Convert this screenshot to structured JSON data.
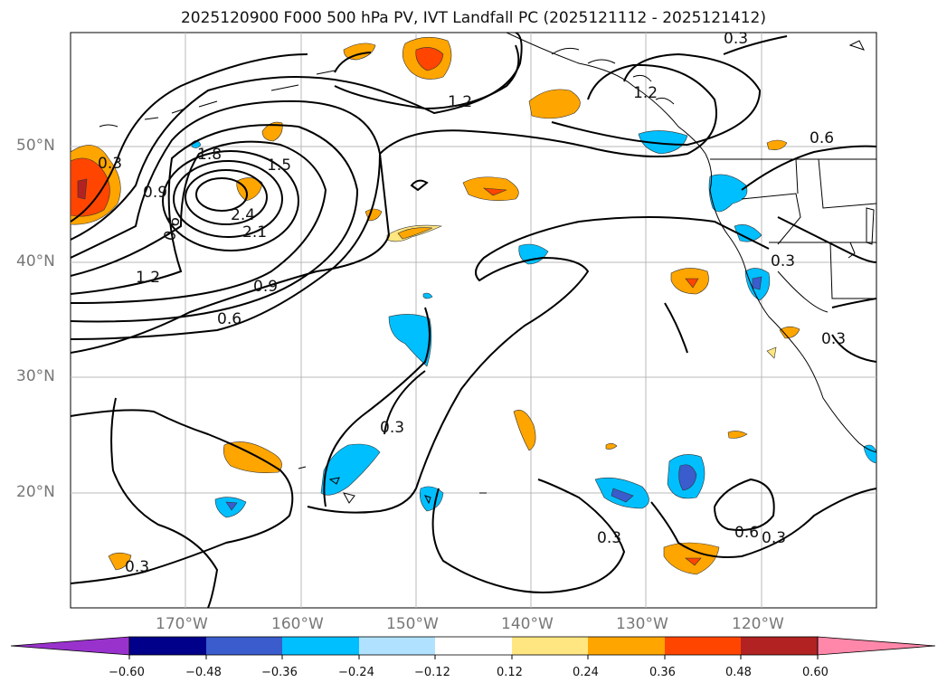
{
  "title": "2025120900 F000 500 hPa PV, IVT Landfall PC (2025121112 - 2025121412)",
  "lat_labels": [
    "50°N",
    "40°N",
    "30°N",
    "20°N"
  ],
  "lon_labels": [
    "170°W",
    "160°W",
    "150°W",
    "140°W",
    "130°W",
    "120°W"
  ],
  "contour_labels": [
    "0.3",
    "0.6",
    "0.9",
    "1.2",
    "1.5",
    "1.8",
    "2.1",
    "2.4",
    "1.2",
    "0.3",
    "0.3",
    "0.3",
    "0.6",
    "0.3",
    "0.6",
    "0.9",
    "1.2",
    "0.3",
    "0.3",
    "0.3",
    "0.6"
  ],
  "colorbar": {
    "ticks": [
      "−0.60",
      "−0.48",
      "−0.36",
      "−0.24",
      "−0.12",
      "0.12",
      "0.24",
      "0.36",
      "0.48",
      "0.60"
    ],
    "colors": [
      "#9932cc",
      "#00008b",
      "#3a5ccc",
      "#00bfff",
      "#b0e2ff",
      "#ffffff",
      "#ffe680",
      "#ffa500",
      "#ff4500",
      "#b22222",
      "#ff88aa"
    ]
  }
}
